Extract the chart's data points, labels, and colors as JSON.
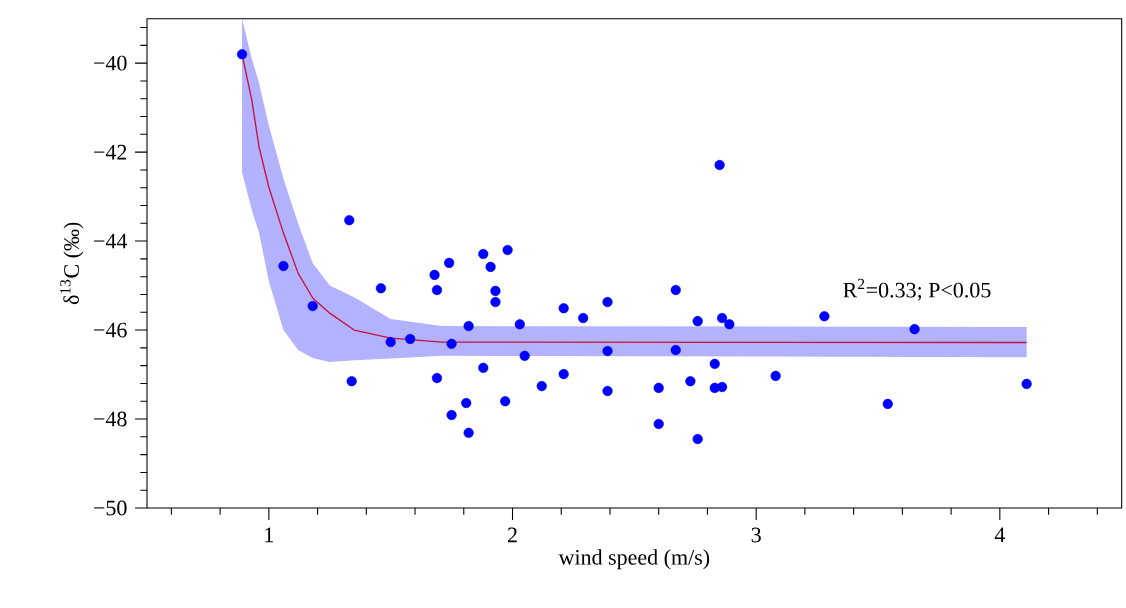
{
  "chart_data": {
    "type": "scatter",
    "xlabel": "wind speed (m/s)",
    "ylabel": "δ$^{13}$C (‰)",
    "xlim": [
      0.5,
      4.5
    ],
    "ylim": [
      -50,
      -39
    ],
    "xticks": [
      {
        "value": 0.6,
        "label": null
      },
      {
        "value": 0.8,
        "label": null
      },
      1,
      {
        "value": 1.2,
        "label": null
      },
      {
        "value": 1.4,
        "label": null
      },
      {
        "value": 1.6,
        "label": null
      },
      {
        "value": 1.8,
        "label": null
      },
      2,
      {
        "value": 2.2,
        "label": null
      },
      {
        "value": 2.4,
        "label": null
      },
      {
        "value": 2.6,
        "label": null
      },
      {
        "value": 2.8,
        "label": null
      },
      3,
      {
        "value": 3.2,
        "label": null
      },
      {
        "value": 3.4,
        "label": null
      },
      {
        "value": 3.6,
        "label": null
      },
      {
        "value": 3.8,
        "label": null
      },
      4,
      {
        "value": 4.2,
        "label": null
      },
      {
        "value": 4.4,
        "label": null
      }
    ],
    "yticks": [
      {
        "value": -50,
        "label": "−50"
      },
      {
        "value": -49.6,
        "label": null
      },
      {
        "value": -49.2,
        "label": null
      },
      {
        "value": -48.8,
        "label": null
      },
      {
        "value": -48.4,
        "label": null
      },
      {
        "value": -48,
        "label": "−48"
      },
      {
        "value": -47.6,
        "label": null
      },
      {
        "value": -47.2,
        "label": null
      },
      {
        "value": -46.8,
        "label": null
      },
      {
        "value": -46.4,
        "label": null
      },
      {
        "value": -46,
        "label": "−46"
      },
      {
        "value": -45.6,
        "label": null
      },
      {
        "value": -45.2,
        "label": null
      },
      {
        "value": -44.8,
        "label": null
      },
      {
        "value": -44.4,
        "label": null
      },
      {
        "value": -44,
        "label": "−44"
      },
      {
        "value": -43.6,
        "label": null
      },
      {
        "value": -43.2,
        "label": null
      },
      {
        "value": -42.8,
        "label": null
      },
      {
        "value": -42.4,
        "label": null
      },
      {
        "value": -42,
        "label": "−42"
      },
      {
        "value": -41.6,
        "label": null
      },
      {
        "value": -41.2,
        "label": null
      },
      {
        "value": -40.8,
        "label": null
      },
      {
        "value": -40.4,
        "label": null
      },
      {
        "value": -40,
        "label": "−40"
      },
      {
        "value": -39.6,
        "label": null
      },
      {
        "value": -39.2,
        "label": null
      }
    ],
    "grid": false,
    "annotations": [
      "R$^{2}$=0.33; P<0.05"
    ],
    "series": [
      {
        "color": "#0000ff",
        "marker": "circle",
        "x": [
          0.89,
          1.06,
          1.33,
          1.46,
          1.68,
          1.69,
          1.74,
          1.88,
          1.91,
          1.98,
          1.93,
          1.93,
          1.18,
          1.82,
          2.03,
          1.5,
          1.58,
          1.75,
          1.34,
          1.69,
          1.88,
          1.97,
          1.81,
          1.75,
          1.82,
          2.85,
          2.67,
          2.21,
          2.29,
          2.39,
          2.76,
          2.86,
          2.89,
          3.28,
          2.05,
          2.39,
          2.67,
          2.83,
          2.21,
          2.12,
          2.39,
          2.6,
          2.73,
          2.83,
          2.86,
          3.08,
          2.6,
          2.76,
          3.65,
          3.54,
          4.11
        ],
        "values": [
          -39.8,
          -44.56,
          -43.53,
          -45.06,
          -44.76,
          -45.1,
          -44.49,
          -44.29,
          -44.58,
          -44.2,
          -45.12,
          -45.37,
          -45.46,
          -45.91,
          -45.87,
          -46.27,
          -46.2,
          -46.31,
          -47.15,
          -47.08,
          -46.85,
          -47.6,
          -47.64,
          -47.91,
          -48.31,
          -42.29,
          -45.1,
          -45.51,
          -45.73,
          -45.37,
          -45.8,
          -45.73,
          -45.87,
          -45.69,
          -46.58,
          -46.47,
          -46.45,
          -46.76,
          -46.99,
          -47.26,
          -47.37,
          -47.3,
          -47.15,
          -47.3,
          -47.28,
          -47.03,
          -48.11,
          -48.45,
          -45.98,
          -47.66,
          -47.21
        ]
      },
      {
        "type": "line",
        "color": "#c8103c",
        "marker": "none",
        "x": [
          0.89,
          0.93,
          0.96,
          1.0,
          1.06,
          1.12,
          1.18,
          1.25,
          1.35,
          1.5,
          1.71,
          4.11
        ],
        "values": [
          -39.8,
          -40.83,
          -41.89,
          -42.79,
          -43.82,
          -44.72,
          -45.28,
          -45.62,
          -46.0,
          -46.18,
          -46.27,
          -46.28
        ],
        "upper": [
          -39.0,
          -39.9,
          -40.45,
          -41.4,
          -42.6,
          -43.6,
          -44.5,
          -45.0,
          -45.26,
          -45.75,
          -45.91,
          -45.93
        ],
        "lower": [
          -42.45,
          -43.3,
          -43.82,
          -44.9,
          -46.0,
          -46.45,
          -46.63,
          -46.72,
          -46.68,
          -46.64,
          -46.58,
          -46.61
        ]
      }
    ]
  }
}
